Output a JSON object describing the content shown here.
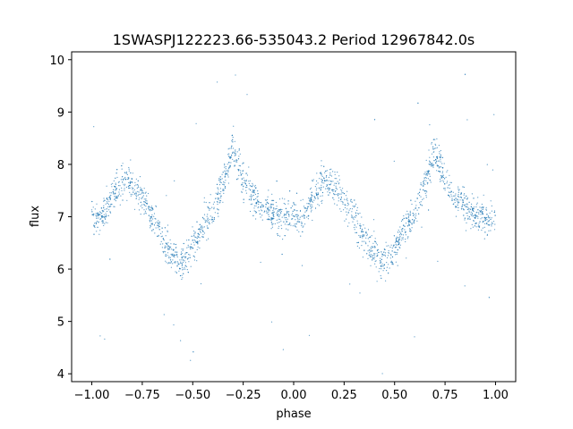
{
  "chart_data": {
    "type": "scatter",
    "title": "1SWASPJ122223.66-535043.2 Period 12967842.0s",
    "xlabel": "phase",
    "ylabel": "flux",
    "xlim": [
      -1.1,
      1.1
    ],
    "ylim": [
      3.85,
      10.15
    ],
    "xticks": [
      -1.0,
      -0.75,
      -0.5,
      -0.25,
      0.0,
      0.25,
      0.5,
      0.75,
      1.0
    ],
    "xtick_labels": [
      "−1.00",
      "−0.75",
      "−0.50",
      "−0.25",
      "0.00",
      "0.25",
      "0.50",
      "0.75",
      "1.00"
    ],
    "yticks": [
      4,
      5,
      6,
      7,
      8,
      9,
      10
    ],
    "ytick_labels": [
      "4",
      "5",
      "6",
      "7",
      "8",
      "9",
      "10"
    ],
    "grid": false,
    "marker_color": "#1f77b4",
    "description_of_shape": "Phase-folded light curve mirrored over two cycles; median flux ~7.0 with maxima ~7.7 near phase -0.85/0.15, peaks ~8.3 near -0.3/0.7, minima ~6.1 near -0.55/0.45; scatter about +/-0.4, sparse outliers from 4.1 to 9.8.",
    "trend": {
      "phase": [
        0.0,
        0.05,
        0.1,
        0.15,
        0.2,
        0.25,
        0.3,
        0.35,
        0.4,
        0.45,
        0.5,
        0.55,
        0.6,
        0.65,
        0.7,
        0.75,
        0.8,
        0.85,
        0.9,
        0.95,
        1.0
      ],
      "flux": [
        7.0,
        7.0,
        7.4,
        7.7,
        7.6,
        7.35,
        7.0,
        6.6,
        6.3,
        6.1,
        6.4,
        6.8,
        7.1,
        7.6,
        8.3,
        7.7,
        7.35,
        7.2,
        7.05,
        7.0,
        7.0
      ]
    }
  }
}
